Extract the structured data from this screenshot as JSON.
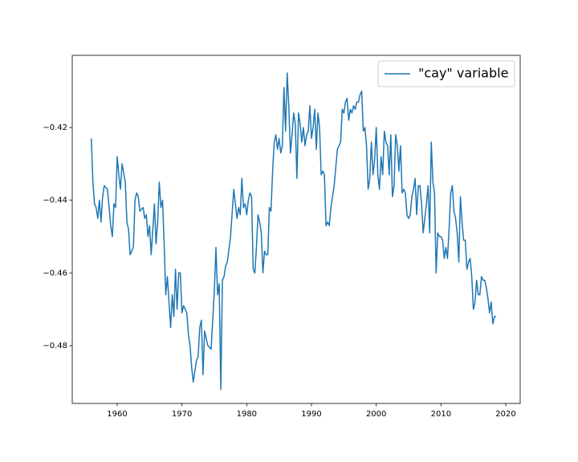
{
  "chart_data": {
    "type": "line",
    "x": [
      1956,
      1956.25,
      1956.5,
      1956.75,
      1957,
      1957.25,
      1957.5,
      1957.75,
      1958,
      1958.5,
      1959,
      1959.25,
      1959.5,
      1959.75,
      1960,
      1960.25,
      1960.5,
      1960.75,
      1961.25,
      1961.5,
      1961.75,
      1962,
      1962.5,
      1962.75,
      1963,
      1963.25,
      1963.5,
      1964,
      1964.25,
      1964.5,
      1964.75,
      1965,
      1965.25,
      1965.5,
      1965.75,
      1966,
      1966.25,
      1966.5,
      1966.75,
      1967,
      1967.25,
      1967.5,
      1967.75,
      1968,
      1968.25,
      1968.5,
      1968.75,
      1969,
      1969.25,
      1969.5,
      1969.75,
      1970,
      1970.25,
      1970.5,
      1970.75,
      1971,
      1971.25,
      1971.5,
      1971.75,
      1972,
      1972.25,
      1972.5,
      1972.75,
      1973,
      1973.25,
      1973.5,
      1973.75,
      1974,
      1974.5,
      1975,
      1975.25,
      1975.5,
      1975.75,
      1976,
      1976.25,
      1976.5,
      1976.75,
      1977,
      1977.5,
      1978,
      1978.25,
      1978.5,
      1978.75,
      1979,
      1979.25,
      1979.5,
      1979.75,
      1980,
      1980.25,
      1980.5,
      1980.75,
      1981,
      1981.25,
      1981.5,
      1981.75,
      1982,
      1982.25,
      1982.5,
      1982.75,
      1983,
      1983.25,
      1983.5,
      1983.75,
      1984,
      1984.25,
      1984.5,
      1984.75,
      1985,
      1985.25,
      1985.5,
      1985.75,
      1986,
      1986.25,
      1986.5,
      1986.75,
      1987,
      1987.25,
      1987.5,
      1987.75,
      1988,
      1988.25,
      1988.5,
      1988.75,
      1989,
      1989.25,
      1989.5,
      1989.75,
      1990,
      1990.25,
      1990.5,
      1990.75,
      1991,
      1991.25,
      1991.5,
      1991.75,
      1992,
      1992.25,
      1992.5,
      1992.75,
      1993,
      1993.5,
      1994,
      1994.5,
      1994.75,
      1995,
      1995.25,
      1995.5,
      1995.75,
      1996,
      1996.25,
      1996.5,
      1996.75,
      1997,
      1997.25,
      1997.5,
      1997.75,
      1998,
      1998.25,
      1998.5,
      1998.75,
      1999,
      1999.25,
      1999.5,
      1999.75,
      2000,
      2000.25,
      2000.5,
      2000.75,
      2001,
      2001.25,
      2001.5,
      2001.75,
      2002,
      2002.25,
      2002.5,
      2002.75,
      2003,
      2003.25,
      2003.5,
      2003.75,
      2004,
      2004.25,
      2004.5,
      2004.75,
      2005,
      2005.25,
      2005.5,
      2005.75,
      2006,
      2006.25,
      2006.5,
      2006.75,
      2007,
      2007.25,
      2007.5,
      2007.75,
      2008,
      2008.25,
      2008.5,
      2008.75,
      2009,
      2009.25,
      2009.5,
      2009.75,
      2010,
      2010.25,
      2010.5,
      2010.75,
      2011,
      2011.25,
      2011.5,
      2011.75,
      2012,
      2012.25,
      2012.5,
      2012.75,
      2013,
      2013.25,
      2013.5,
      2013.75,
      2014,
      2014.25,
      2014.5,
      2014.75,
      2015,
      2015.25,
      2015.5,
      2015.75,
      2016,
      2016.25,
      2016.5,
      2016.75,
      2017,
      2017.25,
      2017.5,
      2017.75,
      2018,
      2018.25,
      2018.5
    ],
    "series": [
      {
        "name": "\"cay\" variable",
        "color": "#1f77b4",
        "values": [
          -0.423,
          -0.435,
          -0.441,
          -0.442,
          -0.445,
          -0.44,
          -0.446,
          -0.439,
          -0.436,
          -0.437,
          -0.447,
          -0.45,
          -0.441,
          -0.442,
          -0.428,
          -0.433,
          -0.437,
          -0.43,
          -0.435,
          -0.446,
          -0.448,
          -0.455,
          -0.453,
          -0.44,
          -0.438,
          -0.439,
          -0.443,
          -0.442,
          -0.445,
          -0.444,
          -0.45,
          -0.447,
          -0.455,
          -0.448,
          -0.441,
          -0.452,
          -0.446,
          -0.435,
          -0.442,
          -0.44,
          -0.452,
          -0.466,
          -0.461,
          -0.468,
          -0.475,
          -0.466,
          -0.472,
          -0.459,
          -0.47,
          -0.46,
          -0.46,
          -0.471,
          -0.469,
          -0.47,
          -0.471,
          -0.477,
          -0.48,
          -0.486,
          -0.49,
          -0.487,
          -0.484,
          -0.483,
          -0.475,
          -0.473,
          -0.488,
          -0.476,
          -0.478,
          -0.48,
          -0.481,
          -0.465,
          -0.453,
          -0.466,
          -0.463,
          -0.492,
          -0.462,
          -0.461,
          -0.458,
          -0.457,
          -0.45,
          -0.437,
          -0.441,
          -0.445,
          -0.442,
          -0.444,
          -0.434,
          -0.442,
          -0.441,
          -0.444,
          -0.44,
          -0.438,
          -0.439,
          -0.459,
          -0.46,
          -0.453,
          -0.444,
          -0.446,
          -0.449,
          -0.46,
          -0.454,
          -0.455,
          -0.455,
          -0.442,
          -0.443,
          -0.432,
          -0.424,
          -0.422,
          -0.426,
          -0.423,
          -0.427,
          -0.425,
          -0.409,
          -0.421,
          -0.405,
          -0.414,
          -0.427,
          -0.422,
          -0.416,
          -0.419,
          -0.434,
          -0.416,
          -0.419,
          -0.424,
          -0.42,
          -0.425,
          -0.422,
          -0.421,
          -0.414,
          -0.423,
          -0.42,
          -0.415,
          -0.426,
          -0.416,
          -0.42,
          -0.433,
          -0.432,
          -0.433,
          -0.447,
          -0.446,
          -0.447,
          -0.442,
          -0.436,
          -0.426,
          -0.424,
          -0.415,
          -0.416,
          -0.413,
          -0.412,
          -0.418,
          -0.415,
          -0.416,
          -0.414,
          -0.415,
          -0.413,
          -0.413,
          -0.411,
          -0.41,
          -0.421,
          -0.42,
          -0.425,
          -0.437,
          -0.434,
          -0.424,
          -0.433,
          -0.429,
          -0.42,
          -0.433,
          -0.437,
          -0.428,
          -0.433,
          -0.421,
          -0.424,
          -0.425,
          -0.433,
          -0.422,
          -0.439,
          -0.436,
          -0.422,
          -0.425,
          -0.432,
          -0.425,
          -0.438,
          -0.437,
          -0.438,
          -0.444,
          -0.445,
          -0.444,
          -0.439,
          -0.437,
          -0.434,
          -0.444,
          -0.436,
          -0.436,
          -0.441,
          -0.449,
          -0.445,
          -0.441,
          -0.436,
          -0.449,
          -0.424,
          -0.435,
          -0.438,
          -0.46,
          -0.449,
          -0.45,
          -0.45,
          -0.451,
          -0.456,
          -0.453,
          -0.456,
          -0.448,
          -0.438,
          -0.436,
          -0.443,
          -0.445,
          -0.449,
          -0.457,
          -0.439,
          -0.446,
          -0.451,
          -0.451,
          -0.459,
          -0.457,
          -0.456,
          -0.461,
          -0.47,
          -0.468,
          -0.462,
          -0.466,
          -0.466,
          -0.461,
          -0.462,
          -0.462,
          -0.464,
          -0.467,
          -0.471,
          -0.468,
          -0.474,
          -0.472,
          -0.472
        ]
      }
    ],
    "xlim": [
      1953.06,
      2022.23
    ],
    "xticks": [
      1960,
      1970,
      1980,
      1990,
      2000,
      2010,
      2020
    ],
    "ylim": [
      -0.4959,
      -0.40015
    ],
    "yticks": [
      {
        "value": -0.48,
        "label": "−0.48"
      },
      {
        "value": -0.46,
        "label": "−0.46"
      },
      {
        "value": -0.44,
        "label": "−0.44"
      },
      {
        "value": -0.42,
        "label": "−0.42"
      }
    ],
    "legend": "upper right"
  }
}
